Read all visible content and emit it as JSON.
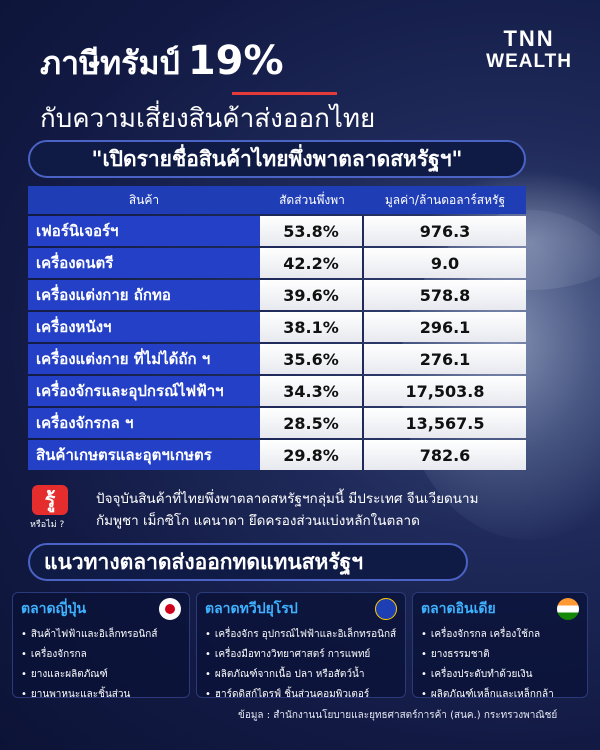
{
  "brand": {
    "line1": "TNN",
    "line2": "WEALTH"
  },
  "title": {
    "prefix": "ภาษีทรัมป์",
    "pct": "19%",
    "line2": "กับความเสี่ยงสินค้าส่งออกไทย"
  },
  "banner": "\"เปิดรายชื่อสินค้าไทยพึ่งพาตลาดสหรัฐฯ\"",
  "table": {
    "headers": [
      "สินค้า",
      "สัดส่วนพึ่งพา",
      "มูลค่า/ล้านดอลาร์สหรัฐ"
    ],
    "rows": [
      {
        "product": "เฟอร์นิเจอร์ฯ",
        "share": "53.8%",
        "value": "976.3"
      },
      {
        "product": "เครื่องดนตรี",
        "share": "42.2%",
        "value": "9.0"
      },
      {
        "product": "เครื่องแต่งกาย ถักทอ",
        "share": "39.6%",
        "value": "578.8"
      },
      {
        "product": "เครื่องหนังฯ",
        "share": "38.1%",
        "value": "296.1"
      },
      {
        "product": "เครื่องแต่งกาย ที่ไม่ได้ถัก ฯ",
        "share": "35.6%",
        "value": "276.1"
      },
      {
        "product": "เครื่องจักรและอุปกรณ์ไฟฟ้าฯ",
        "share": "34.3%",
        "value": "17,503.8"
      },
      {
        "product": "เครื่องจักรกล ฯ",
        "share": "28.5%",
        "value": "13,567.5"
      },
      {
        "product": "สินค้าเกษตรและอุตฯเกษตร",
        "share": "29.8%",
        "value": "782.6"
      }
    ]
  },
  "fact": {
    "badge": "รู้",
    "badge_sub": "หรือไม่ ?",
    "line1": "ปัจจุบันสินค้าที่ไทยพึ่งพาตลาดสหรัฐฯกลุ่มนี้ มีประเทศ จีนเวียดนาม",
    "line2": "กัมพูชา  เม็กซิโก  แคนาดา ยึดครองส่วนแบ่งหลักในตลาด"
  },
  "section_title": "แนวทางตลาดส่งออกทดแทนสหรัฐฯ",
  "markets": [
    {
      "name": "ตลาดญี่ปุ่น",
      "flag": "japan-flag-icon",
      "items": [
        "สินค้าไฟฟ้าและอิเล็กทรอนิกส์",
        "เครื่องจักรกล",
        "ยางและผลิตภัณฑ์",
        "ยานพาหนะและชิ้นส่วน"
      ]
    },
    {
      "name": "ตลาดทวีปยุโรป",
      "flag": "eu-flag-icon",
      "items": [
        "เครื่องจักร อุปกรณ์ไฟฟ้าและอิเล็กทรอนิกส์",
        "เครื่องมือทางวิทยาศาสตร์ การแพทย์",
        "ผลิตภัณฑ์จากเนื้อ ปลา หรือสัตว์น้ำ",
        "ฮาร์ดดิสก์ไดรฟ์ ชิ้นส่วนคอมพิวเตอร์"
      ]
    },
    {
      "name": "ตลาดอินเดีย",
      "flag": "india-flag-icon",
      "items": [
        "เครื่องจักรกล เครื่องใช้กล",
        "ยางธรรมชาติ",
        "เครื่องประดับทำด้วยเงิน",
        "ผลิตภัณฑ์เหล็กและเหล็กกล้า"
      ]
    }
  ],
  "source": "ข้อมูล :  สำนักงานนโยบายและยุทธศาสตร์การค้า (สนค.) กระทรวงพาณิชย์"
}
